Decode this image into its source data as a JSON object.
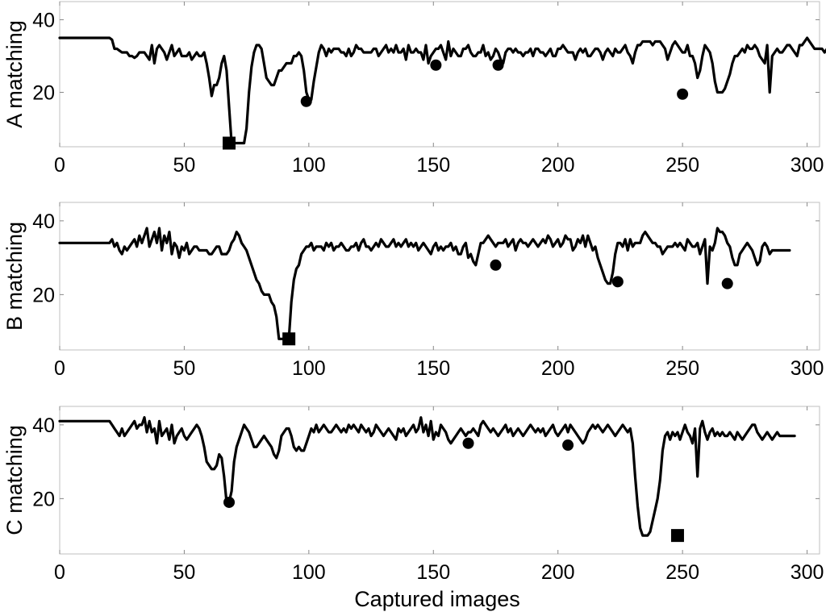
{
  "figure": {
    "xlabel": "Captured images"
  },
  "chart_data": [
    {
      "id": "A",
      "type": "line",
      "title": "",
      "xlabel": "",
      "ylabel": "A matching",
      "xlim": [
        0,
        305
      ],
      "ylim": [
        5,
        45
      ],
      "xticks": [
        0,
        50,
        100,
        150,
        200,
        250,
        300
      ],
      "yticks": [
        20,
        40
      ],
      "line_color": "#000000",
      "x_start": 0,
      "x_step": 1,
      "values": [
        35,
        35,
        35,
        35,
        35,
        35,
        35,
        35,
        35,
        35,
        35,
        35,
        35,
        35,
        35,
        35,
        35,
        35,
        35,
        35,
        35,
        34.5,
        32,
        32,
        31.5,
        31,
        31,
        31,
        30,
        30,
        29.5,
        30,
        31,
        31,
        31,
        30,
        29,
        33,
        28,
        32,
        33,
        32,
        31,
        29,
        31,
        33,
        30,
        31,
        32,
        30,
        30,
        30,
        31,
        29,
        30,
        31,
        30,
        30,
        31,
        28,
        24,
        19,
        22,
        22,
        24,
        28,
        30,
        26,
        16,
        6,
        6,
        6,
        6,
        6,
        6,
        10,
        20,
        27,
        31,
        33,
        33,
        32,
        28,
        24,
        23,
        22,
        22,
        24,
        26,
        26,
        27,
        28,
        28,
        28,
        30,
        30,
        31,
        30,
        26,
        20,
        18,
        18,
        23,
        27,
        31,
        33,
        32,
        30,
        32,
        31,
        32,
        32,
        32,
        31,
        31,
        30,
        32,
        30,
        31,
        33,
        32,
        32,
        31,
        31,
        31,
        31,
        32,
        32,
        30,
        31,
        32,
        33,
        31,
        32,
        31,
        33,
        31,
        31,
        32,
        29,
        33,
        31,
        31,
        32,
        31,
        31,
        29,
        33,
        28,
        30,
        31,
        32,
        32,
        33,
        31,
        29,
        34,
        30,
        32,
        31,
        30,
        30,
        32,
        32,
        33,
        31,
        30,
        30,
        31,
        31,
        33,
        30,
        31,
        29,
        30,
        32,
        31,
        29,
        28,
        31,
        32,
        32,
        31,
        32,
        31,
        31,
        30,
        31,
        31,
        32,
        30,
        32,
        32,
        31,
        31,
        30,
        31,
        32,
        30,
        30,
        32,
        32,
        33,
        32,
        31,
        31,
        31,
        29,
        31,
        32,
        31,
        32,
        30,
        30,
        31,
        32,
        32,
        31,
        29,
        31,
        32,
        31,
        30,
        32,
        31,
        31,
        32,
        33,
        31,
        30,
        28,
        31,
        33,
        33,
        34,
        34,
        34,
        34,
        33,
        34,
        34,
        34,
        33,
        32,
        29,
        31,
        33,
        34,
        33,
        32,
        31,
        31,
        33,
        30,
        30,
        28,
        24,
        26,
        30,
        33,
        32,
        31,
        28,
        23,
        20,
        20,
        20,
        21,
        23,
        25,
        28,
        30,
        30,
        31,
        32,
        31,
        33,
        32,
        32,
        33,
        32,
        30,
        29,
        28,
        33,
        20,
        30,
        31,
        32,
        31,
        31,
        32,
        33,
        33,
        32,
        31,
        30,
        33,
        33,
        34,
        35,
        34,
        33,
        32,
        32,
        32,
        32,
        31,
        32,
        32,
        32
      ],
      "markers": {
        "circle": [
          [
            99,
            17.5
          ],
          [
            151,
            27.5
          ],
          [
            176,
            27.5
          ],
          [
            250,
            19.5
          ]
        ],
        "square": [
          [
            68,
            6
          ]
        ]
      }
    },
    {
      "id": "B",
      "type": "line",
      "title": "",
      "xlabel": "",
      "ylabel": "B matching",
      "xlim": [
        0,
        305
      ],
      "ylim": [
        5,
        45
      ],
      "xticks": [
        0,
        50,
        100,
        150,
        200,
        250,
        300
      ],
      "yticks": [
        20,
        40
      ],
      "line_color": "#000000",
      "x_start": 0,
      "x_step": 1,
      "values": [
        34,
        34,
        34,
        34,
        34,
        34,
        34,
        34,
        34,
        34,
        34,
        34,
        34,
        34,
        34,
        34,
        34,
        34,
        34,
        34,
        34,
        35,
        33,
        34,
        32,
        31,
        33,
        32,
        33,
        34,
        35,
        33,
        36,
        34,
        36,
        38,
        33,
        35,
        37,
        34,
        38,
        32,
        36,
        34,
        37,
        31,
        34,
        33,
        30,
        33,
        32,
        34,
        31,
        32,
        33,
        33,
        32,
        32,
        32,
        32,
        31,
        31,
        32,
        33,
        33,
        31,
        31,
        31,
        32,
        34,
        35,
        37,
        36,
        34,
        33,
        32,
        30,
        28,
        26,
        24,
        23,
        21,
        20,
        20,
        20,
        18,
        17,
        14,
        8,
        8,
        8,
        8,
        8,
        18,
        24,
        27,
        28,
        31,
        32,
        33,
        33,
        34,
        32,
        33,
        33,
        33,
        32,
        34,
        33,
        34,
        32,
        33,
        33,
        34,
        33,
        32,
        32,
        33,
        33,
        34,
        32,
        34,
        35,
        33,
        33,
        32,
        33,
        34,
        33,
        35,
        34,
        33,
        33,
        34,
        35,
        33,
        34,
        33,
        34,
        35,
        33,
        34,
        33,
        34,
        32,
        33,
        34,
        33,
        32,
        31,
        33,
        34,
        32,
        33,
        32,
        33,
        33,
        34,
        32,
        33,
        31,
        31,
        33,
        34,
        30,
        31,
        29,
        28,
        31,
        34,
        34,
        35,
        36,
        35,
        34,
        33,
        34,
        34,
        34,
        35,
        33,
        34,
        35,
        32,
        34,
        35,
        34,
        34,
        33,
        34,
        35,
        34,
        33,
        34,
        35,
        34,
        36,
        35,
        33,
        34,
        35,
        33,
        34,
        36,
        35,
        35,
        32,
        33,
        35,
        34,
        36,
        33,
        36,
        34,
        32,
        33,
        30,
        28,
        26,
        24,
        23,
        23,
        26,
        31,
        34,
        34,
        33,
        35,
        32,
        35,
        33,
        34,
        34,
        34,
        36,
        37,
        36,
        35,
        34,
        34,
        33,
        33,
        31,
        32,
        33,
        33,
        33,
        34,
        33,
        34,
        33,
        32,
        35,
        34,
        33,
        33,
        34,
        31,
        33,
        35,
        23,
        33,
        32,
        34,
        38,
        37,
        37,
        36,
        34,
        33,
        30,
        28,
        28,
        31,
        32,
        33,
        34,
        33,
        32,
        30,
        28,
        29,
        33,
        34,
        33,
        31,
        32,
        32,
        32,
        32,
        32,
        32,
        32,
        32
      ],
      "markers": {
        "circle": [
          [
            175,
            28
          ],
          [
            224,
            23.5
          ],
          [
            268,
            23
          ]
        ],
        "square": [
          [
            92,
            8
          ]
        ]
      }
    },
    {
      "id": "C",
      "type": "line",
      "title": "",
      "xlabel": "Captured images",
      "ylabel": "C matching",
      "xlim": [
        0,
        305
      ],
      "ylim": [
        5,
        45
      ],
      "xticks": [
        0,
        50,
        100,
        150,
        200,
        250,
        300
      ],
      "yticks": [
        20,
        40
      ],
      "line_color": "#000000",
      "x_start": 0,
      "x_step": 1,
      "values": [
        41,
        41,
        41,
        41,
        41,
        41,
        41,
        41,
        41,
        41,
        41,
        41,
        41,
        41,
        41,
        41,
        41,
        41,
        41,
        41,
        41,
        40,
        39,
        38,
        37,
        39,
        37,
        38,
        39,
        40,
        41,
        39,
        40,
        40,
        42,
        38,
        41,
        38,
        39,
        35,
        41,
        37,
        38,
        39,
        36,
        40,
        35,
        37,
        38,
        39,
        37,
        36,
        37,
        38,
        39,
        40,
        39,
        37,
        34,
        30,
        29,
        28,
        28,
        29,
        32,
        31,
        26,
        19,
        19,
        22,
        30,
        34,
        36,
        38,
        40,
        39,
        38,
        36,
        34,
        34,
        35,
        36,
        37,
        36,
        35,
        34,
        32,
        31,
        33,
        37,
        38,
        39,
        39,
        37,
        34,
        33,
        34,
        33,
        33,
        35,
        37,
        39,
        38,
        40,
        38,
        39,
        40,
        39,
        38,
        38,
        39,
        40,
        39,
        38,
        39,
        38,
        40,
        39,
        40,
        39,
        38,
        40,
        39,
        38,
        39,
        37,
        38,
        40,
        39,
        38,
        37,
        38,
        39,
        38,
        37,
        36,
        39,
        38,
        39,
        37,
        38,
        39,
        40,
        38,
        39,
        42,
        38,
        40,
        37,
        41,
        36,
        38,
        37,
        40,
        39,
        38,
        36,
        35,
        36,
        37,
        38,
        39,
        38,
        37,
        38,
        38,
        39,
        38,
        37,
        40,
        41,
        40,
        39,
        38,
        39,
        38,
        37,
        38,
        39,
        40,
        38,
        39,
        37,
        38,
        39,
        38,
        37,
        38,
        39,
        40,
        39,
        38,
        39,
        38,
        39,
        37,
        38,
        39,
        40,
        38,
        37,
        38,
        39,
        40,
        38,
        40,
        39,
        38,
        37,
        36,
        35,
        36,
        38,
        39,
        40,
        39,
        40,
        39,
        38,
        39,
        40,
        39,
        38,
        37,
        38,
        39,
        40,
        39,
        38,
        39,
        35,
        26,
        18,
        12,
        10,
        10,
        10,
        11,
        14,
        17,
        20,
        25,
        33,
        37,
        38,
        36,
        38,
        37,
        38,
        36,
        38,
        40,
        38,
        37,
        35,
        39,
        26,
        39,
        41,
        38,
        36,
        38,
        39,
        37,
        38,
        37,
        38,
        37,
        37,
        38,
        37,
        36,
        38,
        37,
        36,
        37,
        38,
        39,
        40,
        40,
        38,
        37,
        36,
        37,
        38,
        37,
        36,
        37,
        38,
        37,
        37,
        37,
        37,
        37,
        37,
        37
      ],
      "markers": {
        "circle": [
          [
            68,
            19
          ],
          [
            164,
            35
          ],
          [
            204,
            34.5
          ]
        ],
        "square": [
          [
            248,
            10
          ]
        ]
      }
    }
  ]
}
